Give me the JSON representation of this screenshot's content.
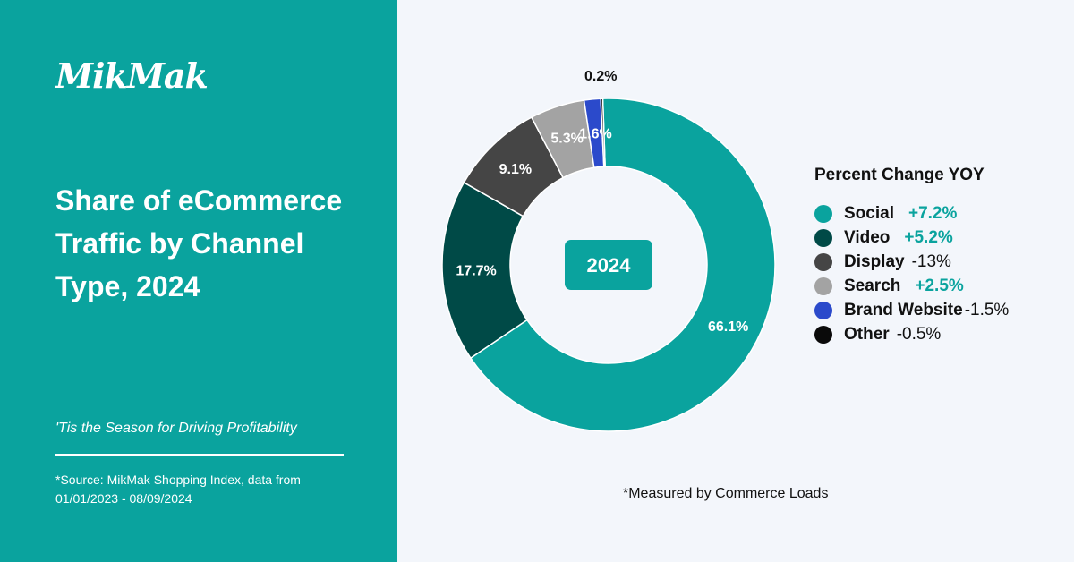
{
  "brand": {
    "logo_text": "MikMak"
  },
  "heading": {
    "title": "Share of eCommerce Traffic by Channel Type, 2024"
  },
  "tagline": "'Tis the Season for Driving Profitability",
  "source_note": "*Source: MikMak Shopping Index, data from 01/01/2023 - 08/09/2024",
  "footnote": "*Measured by Commerce Loads",
  "colors": {
    "accent": "#0aa39e",
    "background_right": "#f3f6fb",
    "center_badge": "#0aa39e"
  },
  "chart_data": {
    "type": "pie",
    "variant": "donut",
    "center_label": "2024",
    "categories": [
      "Social",
      "Video",
      "Display",
      "Search",
      "Brand Website",
      "Other"
    ],
    "values": [
      66.1,
      17.7,
      9.1,
      5.3,
      1.6,
      0.2
    ],
    "value_labels": [
      "66.1%",
      "17.7%",
      "9.1%",
      "5.3%",
      "1.6%",
      "0.2%"
    ],
    "colors": [
      "#0aa39e",
      "#004a47",
      "#454545",
      "#a3a3a3",
      "#2b4acb",
      "#0a0a0a"
    ],
    "legend": {
      "title": "Percent Change YOY",
      "placement": "right",
      "items": [
        {
          "label": "Social",
          "change": "+7.2%",
          "positive": true
        },
        {
          "label": "Video",
          "change": "+5.2%",
          "positive": true
        },
        {
          "label": "Display",
          "change": "-13%",
          "positive": false
        },
        {
          "label": "Search",
          "change": "+2.5%",
          "positive": true
        },
        {
          "label": "Brand Website",
          "change": "-1.5%",
          "positive": false
        },
        {
          "label": "Other",
          "change": "-0.5%",
          "positive": false
        }
      ]
    }
  }
}
